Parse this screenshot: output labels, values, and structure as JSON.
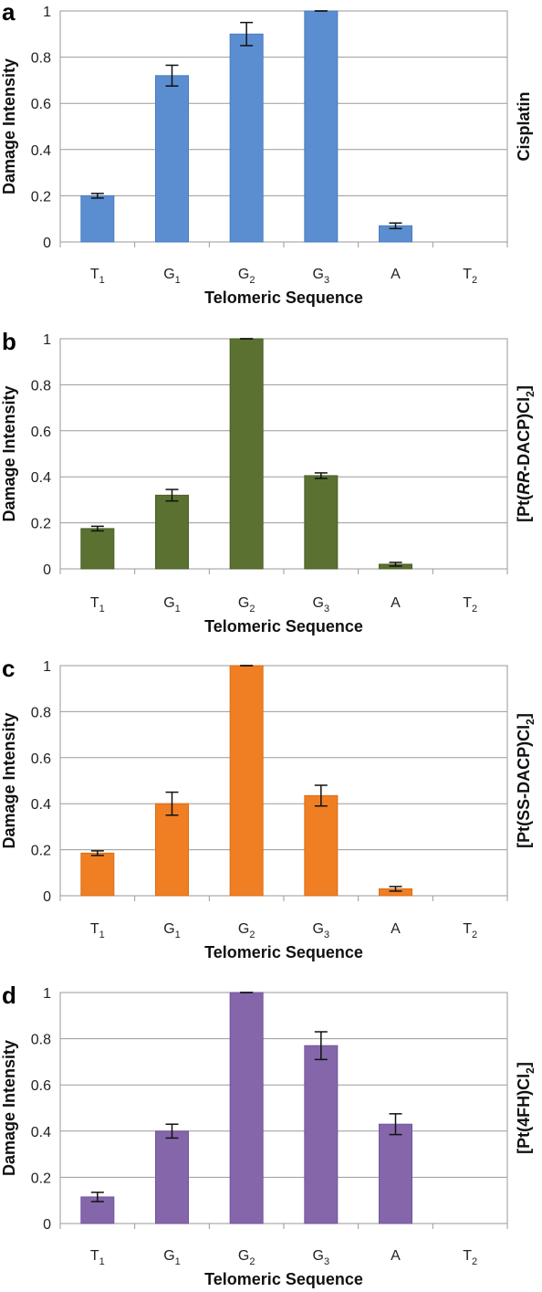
{
  "chart_data": [
    {
      "type": "bar",
      "panel_label": "a",
      "compound": "Cisplatin",
      "xlabel": "Telomeric Sequence",
      "ylabel": "Damage Intensity",
      "ylim": [
        0,
        1
      ],
      "yticks": [
        "0",
        "0.2",
        "0.4",
        "0.6",
        "0.8",
        "1"
      ],
      "categories": [
        {
          "base": "T",
          "sub": "1"
        },
        {
          "base": "G",
          "sub": "1"
        },
        {
          "base": "G",
          "sub": "2"
        },
        {
          "base": "G",
          "sub": "3"
        },
        {
          "base": "A",
          "sub": ""
        },
        {
          "base": "T",
          "sub": "2"
        }
      ],
      "values": [
        0.2,
        0.72,
        0.9,
        1.0,
        0.07,
        0
      ],
      "errors": [
        0.01,
        0.045,
        0.05,
        0,
        0.012,
        0
      ],
      "color": "#5b8ed0",
      "edge_color": "#4a7cbd"
    },
    {
      "type": "bar",
      "panel_label": "b",
      "compound": "[Pt(RR-DACP)Cl2]",
      "compound_parts": [
        {
          "t": "[Pt(",
          "i": false
        },
        {
          "t": "RR",
          "i": true
        },
        {
          "t": "-DACP)Cl",
          "i": false
        },
        {
          "t": "2",
          "i": false,
          "sub": true
        },
        {
          "t": "]",
          "i": false
        }
      ],
      "xlabel": "Telomeric Sequence",
      "ylabel": "Damage Intensity",
      "ylim": [
        0,
        1
      ],
      "yticks": [
        "0",
        "0.2",
        "0.4",
        "0.6",
        "0.8",
        "1"
      ],
      "categories": [
        {
          "base": "T",
          "sub": "1"
        },
        {
          "base": "G",
          "sub": "1"
        },
        {
          "base": "G",
          "sub": "2"
        },
        {
          "base": "G",
          "sub": "3"
        },
        {
          "base": "A",
          "sub": ""
        },
        {
          "base": "T",
          "sub": "2"
        }
      ],
      "values": [
        0.175,
        0.32,
        1.0,
        0.405,
        0.02,
        0
      ],
      "errors": [
        0.01,
        0.025,
        0,
        0.012,
        0.008,
        0
      ],
      "color": "#5b7132",
      "edge_color": "#4a5e28"
    },
    {
      "type": "bar",
      "panel_label": "c",
      "compound": "[Pt(SS-DACP)Cl2]",
      "compound_parts": [
        {
          "t": "[Pt(SS-DACP)Cl",
          "i": false
        },
        {
          "t": "2",
          "i": false,
          "sub": true
        },
        {
          "t": "]",
          "i": false
        }
      ],
      "xlabel": "Telomeric Sequence",
      "ylabel": "Damage Intensity",
      "ylim": [
        0,
        1
      ],
      "yticks": [
        "0",
        "0.2",
        "0.4",
        "0.6",
        "0.8",
        "1"
      ],
      "categories": [
        {
          "base": "T",
          "sub": "1"
        },
        {
          "base": "G",
          "sub": "1"
        },
        {
          "base": "G",
          "sub": "2"
        },
        {
          "base": "G",
          "sub": "3"
        },
        {
          "base": "A",
          "sub": ""
        },
        {
          "base": "T",
          "sub": "2"
        }
      ],
      "values": [
        0.185,
        0.4,
        1.0,
        0.435,
        0.03,
        0
      ],
      "errors": [
        0.01,
        0.05,
        0,
        0.045,
        0.01,
        0
      ],
      "color": "#f07f24",
      "edge_color": "#d96d16"
    },
    {
      "type": "bar",
      "panel_label": "d",
      "compound": "[Pt(4FH)Cl2]",
      "compound_parts": [
        {
          "t": "[Pt(4FH)Cl",
          "i": false
        },
        {
          "t": "2",
          "i": false,
          "sub": true
        },
        {
          "t": "]",
          "i": false
        }
      ],
      "xlabel": "Telomeric Sequence",
      "ylabel": "Damage Intensity",
      "ylim": [
        0,
        1
      ],
      "yticks": [
        "0",
        "0.2",
        "0.4",
        "0.6",
        "0.8",
        "1"
      ],
      "categories": [
        {
          "base": "T",
          "sub": "1"
        },
        {
          "base": "G",
          "sub": "1"
        },
        {
          "base": "G",
          "sub": "2"
        },
        {
          "base": "G",
          "sub": "3"
        },
        {
          "base": "A",
          "sub": ""
        },
        {
          "base": "T",
          "sub": "2"
        }
      ],
      "values": [
        0.115,
        0.4,
        1.0,
        0.77,
        0.43,
        0
      ],
      "errors": [
        0.02,
        0.03,
        0,
        0.06,
        0.045,
        0
      ],
      "color": "#8566ab",
      "edge_color": "#72559a"
    }
  ]
}
